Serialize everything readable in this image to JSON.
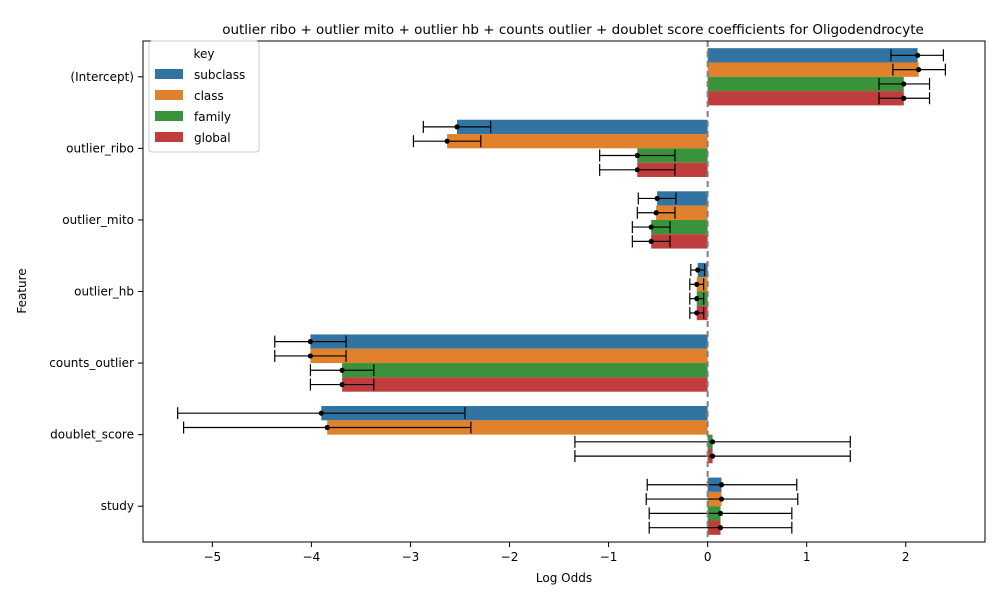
{
  "chart_data": {
    "type": "bar",
    "orientation": "horizontal",
    "title": "outlier ribo + outlier mito + outlier hb + counts outlier + doublet score coefficients for Oligodendrocyte",
    "xlabel": "Log Odds",
    "ylabel": "Feature",
    "xlim": [
      -5.7,
      2.8
    ],
    "xticks": [
      -5,
      -4,
      -3,
      -2,
      -1,
      0,
      1,
      2
    ],
    "xtick_labels": [
      "−5",
      "−4",
      "−3",
      "−2",
      "−1",
      "0",
      "1",
      "2"
    ],
    "reference_line": 0,
    "grid": false,
    "categories": [
      "(Intercept)",
      "outlier_ribo",
      "outlier_mito",
      "outlier_hb",
      "counts_outlier",
      "doublet_score",
      "study"
    ],
    "legend": {
      "title": "key",
      "placement": "top-left"
    },
    "series": [
      {
        "name": "subclass",
        "color": "#3274a1",
        "values": [
          2.12,
          -2.53,
          -0.51,
          -0.1,
          -4.01,
          -3.9,
          0.14
        ],
        "err_low": [
          1.85,
          -2.87,
          -0.7,
          -0.17,
          -4.37,
          -5.35,
          -0.61
        ],
        "err_high": [
          2.38,
          -2.19,
          -0.32,
          -0.03,
          -3.65,
          -2.45,
          0.9
        ]
      },
      {
        "name": "class",
        "color": "#e1812c",
        "values": [
          2.13,
          -2.63,
          -0.52,
          -0.11,
          -4.01,
          -3.84,
          0.14
        ],
        "err_low": [
          1.87,
          -2.97,
          -0.71,
          -0.18,
          -4.37,
          -5.29,
          -0.62
        ],
        "err_high": [
          2.4,
          -2.29,
          -0.33,
          -0.04,
          -3.65,
          -2.39,
          0.91
        ]
      },
      {
        "name": "family",
        "color": "#3a923a",
        "values": [
          1.98,
          -0.71,
          -0.57,
          -0.11,
          -3.69,
          0.05,
          0.13
        ],
        "err_low": [
          1.73,
          -1.09,
          -0.76,
          -0.18,
          -4.01,
          -1.34,
          -0.59
        ],
        "err_high": [
          2.24,
          -0.33,
          -0.38,
          -0.04,
          -3.37,
          1.44,
          0.85
        ]
      },
      {
        "name": "global",
        "color": "#c03d3e",
        "values": [
          1.98,
          -0.71,
          -0.57,
          -0.11,
          -3.69,
          0.05,
          0.13
        ],
        "err_low": [
          1.73,
          -1.09,
          -0.76,
          -0.18,
          -4.01,
          -1.34,
          -0.59
        ],
        "err_high": [
          2.24,
          -0.33,
          -0.38,
          -0.04,
          -3.37,
          1.44,
          0.85
        ]
      }
    ]
  }
}
